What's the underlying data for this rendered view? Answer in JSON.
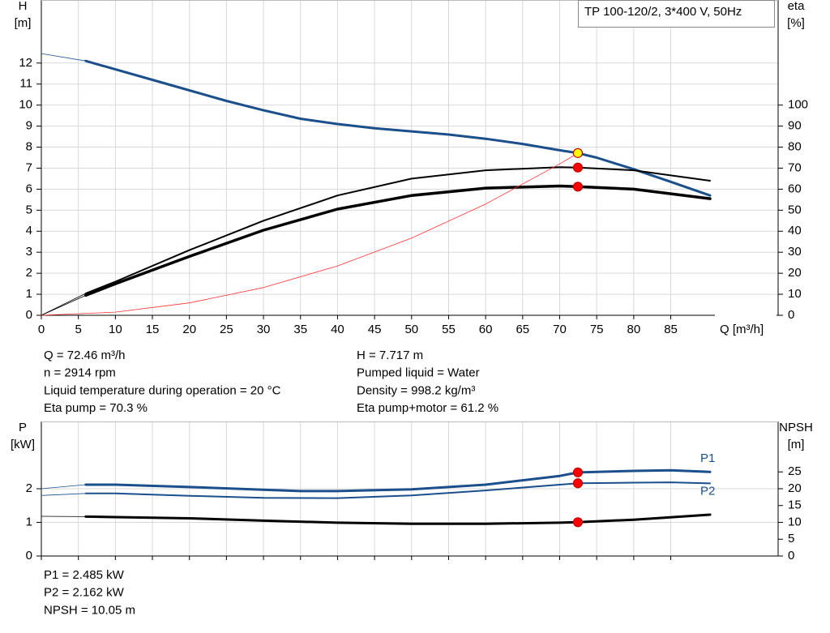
{
  "chart_data": [
    {
      "type": "line",
      "title": "TP 100-120/2, 3*400 V, 50Hz",
      "ylabel": "H",
      "yunit": "[m]",
      "y2label": "eta",
      "y2unit": "[%]",
      "xlabel": "Q [m³/h]",
      "xlim": [
        0,
        99.5
      ],
      "xticks": [
        0,
        5,
        10,
        15,
        20,
        25,
        30,
        35,
        40,
        45,
        50,
        55,
        60,
        65,
        70,
        75,
        80,
        85
      ],
      "ylim": [
        0,
        15
      ],
      "yticks": [
        0,
        1,
        2,
        3,
        4,
        5,
        6,
        7,
        8,
        9,
        10,
        11,
        12
      ],
      "y2lim": [
        0,
        150
      ],
      "y2ticks": [
        0,
        10,
        20,
        30,
        40,
        50,
        60,
        70,
        80,
        90,
        100
      ],
      "grid": true,
      "xtick_labels": true,
      "series": [
        {
          "color": "#1a4f8c",
          "width": 3,
          "axis": "y",
          "x": [
            0,
            6,
            10,
            15,
            20,
            25,
            30,
            35,
            40,
            45,
            50,
            55,
            60,
            65,
            70,
            72.46,
            75,
            80,
            85,
            90.3
          ],
          "values": [
            12.45,
            12.1,
            11.7,
            11.2,
            10.7,
            10.2,
            9.75,
            9.35,
            9.1,
            8.9,
            8.75,
            8.6,
            8.4,
            8.15,
            7.85,
            7.717,
            7.5,
            6.95,
            6.35,
            5.7
          ]
        },
        {
          "color": "#000000",
          "width": 2,
          "axis": "y2",
          "x": [
            0,
            6,
            10,
            20,
            30,
            40,
            50,
            60,
            70,
            72.46,
            80,
            90.3
          ],
          "values": [
            0,
            10.4,
            16,
            31,
            45,
            57,
            65,
            69,
            70.5,
            70.3,
            69,
            64
          ]
        },
        {
          "color": "#000000",
          "width": 3.5,
          "axis": "y2",
          "x": [
            0,
            6,
            10,
            20,
            30,
            40,
            50,
            60,
            70,
            72.46,
            80,
            90.3
          ],
          "values": [
            0,
            9.5,
            15,
            28,
            40.5,
            50.5,
            57,
            60.5,
            61.5,
            61.2,
            60,
            55.5
          ]
        },
        {
          "color": "#ff3030",
          "width": 0.8,
          "axis": "y",
          "x": [
            0,
            10,
            20,
            30,
            40,
            50,
            60,
            70,
            72.46
          ],
          "values": [
            0,
            0.15,
            0.59,
            1.32,
            2.35,
            3.67,
            5.29,
            7.2,
            7.717
          ]
        }
      ],
      "points": [
        {
          "x": 72.46,
          "y": 7.717,
          "axis": "y",
          "color": "#ffff00"
        },
        {
          "x": 72.46,
          "y": 70.3,
          "axis": "y2",
          "color": "#ff0000"
        },
        {
          "x": 72.46,
          "y": 61.2,
          "axis": "y2",
          "color": "#ff0000"
        }
      ]
    },
    {
      "type": "line",
      "ylabel": "P",
      "yunit": "[kW]",
      "y2label": "NPSH",
      "y2unit": "[m]",
      "xlim": [
        0,
        99.5
      ],
      "xticks": [
        0,
        5,
        10,
        15,
        20,
        25,
        30,
        35,
        40,
        45,
        50,
        55,
        60,
        65,
        70,
        75,
        80,
        85
      ],
      "ylim": [
        0,
        4
      ],
      "yticks": [
        0,
        1,
        2
      ],
      "y2lim": [
        0,
        40
      ],
      "y2ticks": [
        0,
        5,
        10,
        15,
        20,
        25
      ],
      "grid": true,
      "xtick_labels": false,
      "series": [
        {
          "name": "P1",
          "label_position": "above",
          "color": "#1a4f8c",
          "width": 3,
          "axis": "y",
          "x": [
            0,
            6,
            10,
            20,
            30,
            35,
            40,
            50,
            60,
            70,
            72.46,
            80,
            85,
            90.3
          ],
          "values": [
            2.0,
            2.12,
            2.12,
            2.05,
            1.97,
            1.93,
            1.93,
            1.98,
            2.12,
            2.38,
            2.485,
            2.53,
            2.55,
            2.5
          ]
        },
        {
          "name": "P2",
          "label_position": "below",
          "color": "#1a4f8c",
          "width": 2,
          "axis": "y",
          "x": [
            0,
            6,
            10,
            20,
            30,
            40,
            50,
            60,
            70,
            72.46,
            80,
            85,
            90.3
          ],
          "values": [
            1.8,
            1.86,
            1.86,
            1.79,
            1.73,
            1.72,
            1.8,
            1.95,
            2.12,
            2.162,
            2.18,
            2.19,
            2.16
          ]
        },
        {
          "color": "#000000",
          "width": 3,
          "axis": "y2",
          "x": [
            0,
            6,
            20,
            30,
            40,
            50,
            60,
            70,
            72.46,
            80,
            90.3
          ],
          "values": [
            11.8,
            11.7,
            11.2,
            10.5,
            9.9,
            9.6,
            9.6,
            9.9,
            10.05,
            10.8,
            12.3
          ]
        }
      ],
      "points": [
        {
          "x": 72.46,
          "y": 2.485,
          "axis": "y",
          "color": "#ff0000"
        },
        {
          "x": 72.46,
          "y": 2.162,
          "axis": "y",
          "color": "#ff0000"
        },
        {
          "x": 72.46,
          "y": 10.05,
          "axis": "y2",
          "color": "#ff0000"
        }
      ]
    }
  ],
  "info": {
    "duty_left": [
      "Q = 72.46 m³/h",
      "n = 2914 rpm",
      "Liquid temperature during operation = 20 °C",
      "Eta pump = 70.3 %"
    ],
    "duty_right": [
      "H = 7.717 m",
      "Pumped liquid = Water",
      "Density = 998.2 kg/m³",
      "Eta pump+motor = 61.2 %"
    ],
    "power": [
      "P1 = 2.485 kW",
      "P2 = 2.162 kW",
      "NPSH = 10.05 m"
    ]
  }
}
